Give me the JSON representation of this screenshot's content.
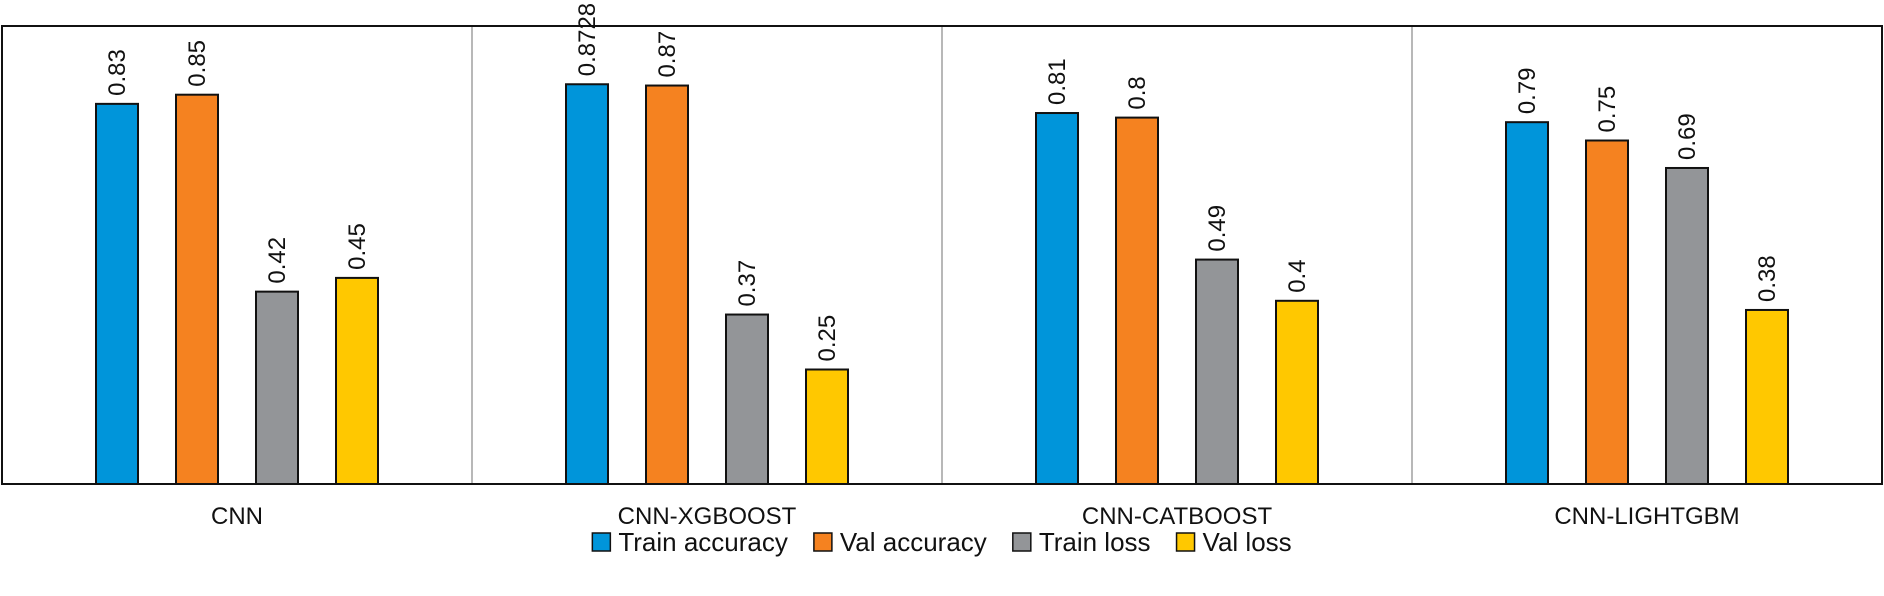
{
  "chart_data": {
    "type": "bar",
    "categories": [
      "CNN",
      "CNN-XGBOOST",
      "CNN-CATBOOST",
      "CNN-LIGHTGBM"
    ],
    "series": [
      {
        "name": "Train accuracy",
        "color": "#0095DA",
        "values": [
          0.83,
          0.8728,
          0.81,
          0.79
        ],
        "labels": [
          "0.83",
          "0.8728",
          "0.81",
          "0.79"
        ]
      },
      {
        "name": "Val accuracy",
        "color": "#F58220",
        "values": [
          0.85,
          0.87,
          0.8,
          0.75
        ],
        "labels": [
          "0.85",
          "0.87",
          "0.8",
          "0.75"
        ]
      },
      {
        "name": "Train loss",
        "color": "#939598",
        "values": [
          0.42,
          0.37,
          0.49,
          0.69
        ],
        "labels": [
          "0.42",
          "0.37",
          "0.49",
          "0.69"
        ]
      },
      {
        "name": "Val loss",
        "color": "#FFC800",
        "values": [
          0.45,
          0.25,
          0.4,
          0.38
        ],
        "labels": [
          "0.45",
          "0.25",
          "0.4",
          "0.38"
        ]
      }
    ],
    "ylim": [
      0,
      1
    ],
    "grid": false,
    "legend_position": "bottom"
  }
}
